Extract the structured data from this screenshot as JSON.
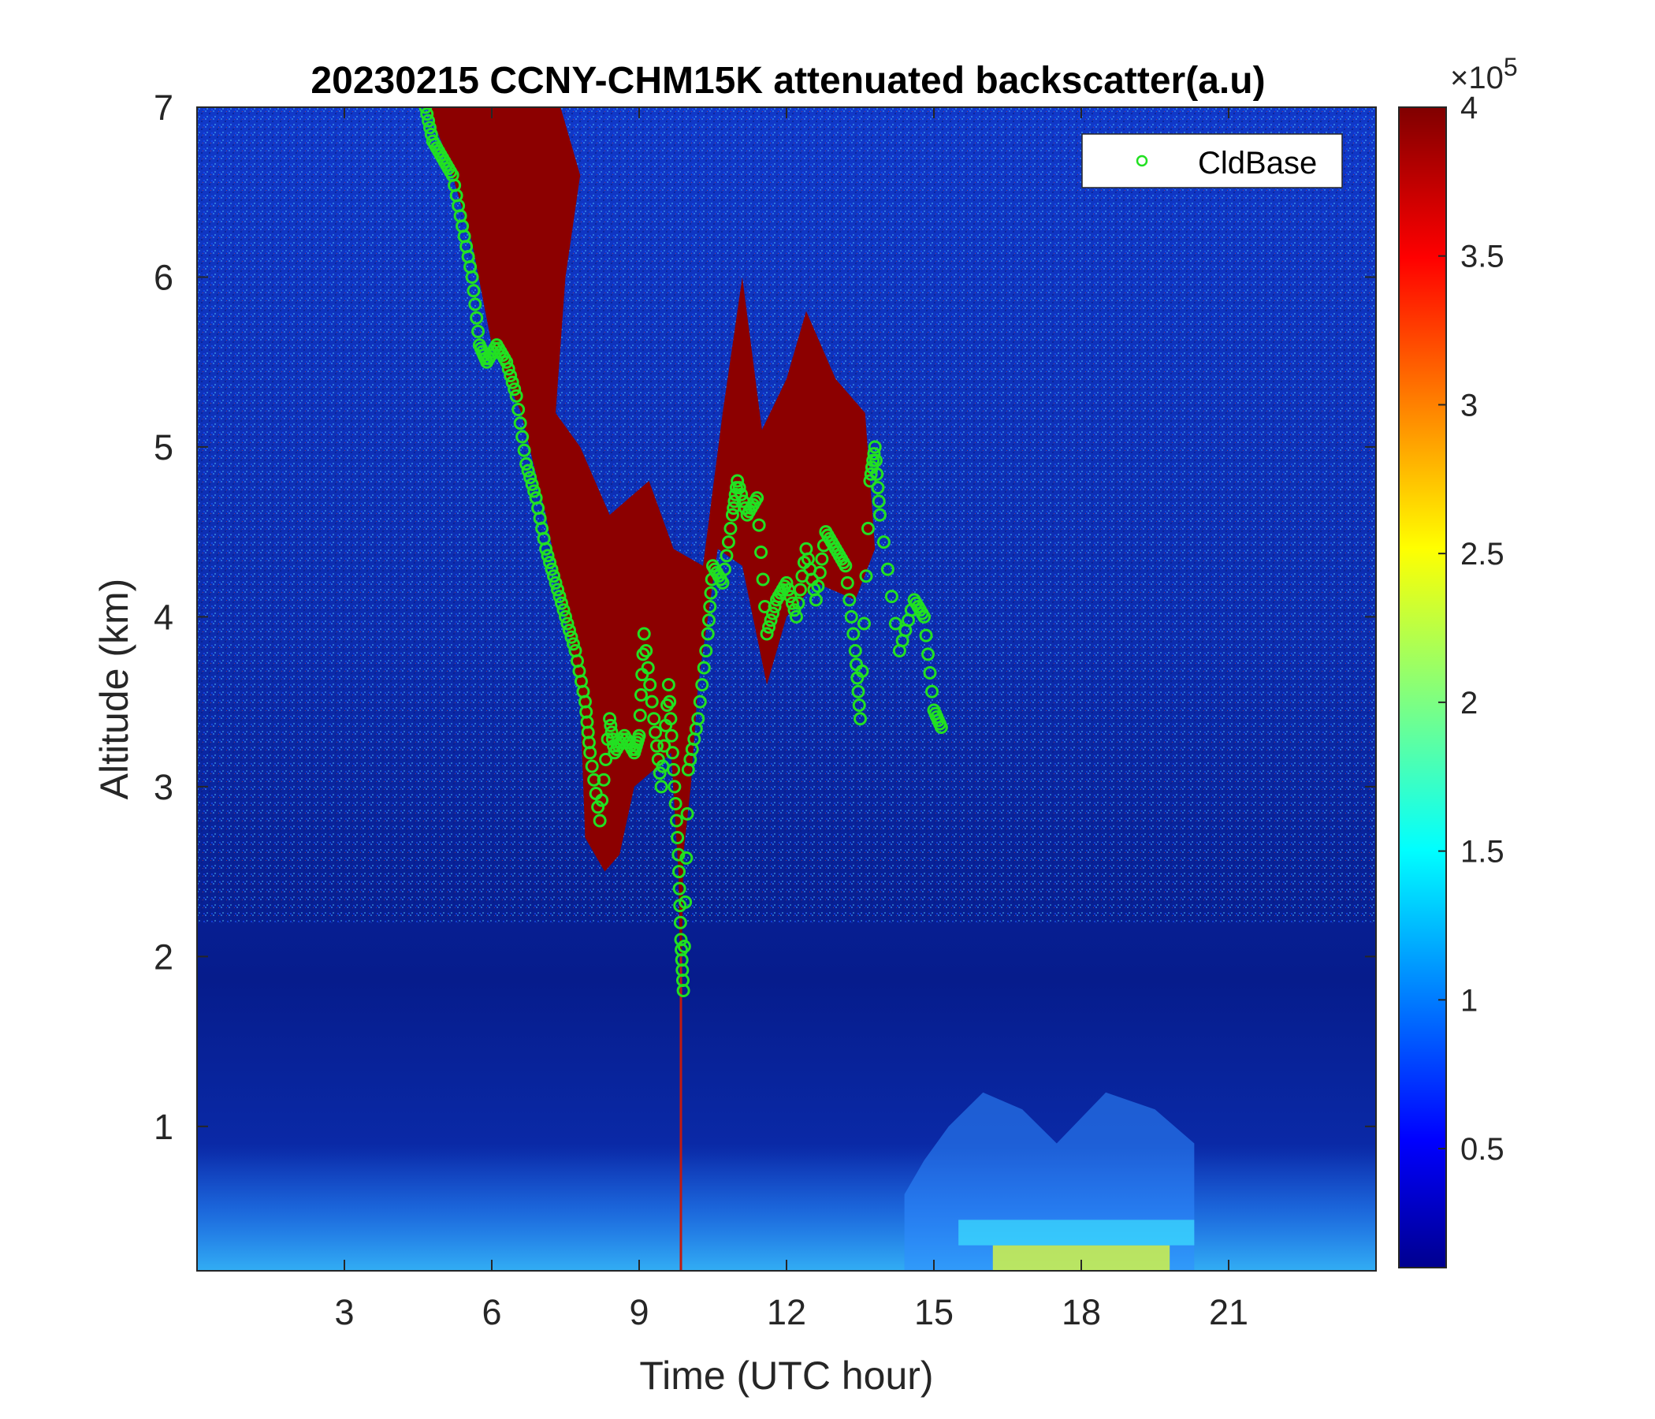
{
  "chart_data": {
    "type": "heatmap",
    "title": "20230215 CCNY-CHM15K attenuated backscatter(a.u)",
    "xlabel": "Time (UTC hour)",
    "ylabel": "Altitude (km)",
    "xlim": [
      0,
      24
    ],
    "ylim": [
      0.15,
      7
    ],
    "xticks": [
      3,
      6,
      9,
      12,
      15,
      18,
      21
    ],
    "yticks": [
      1,
      2,
      3,
      4,
      5,
      6,
      7
    ],
    "colorbar": {
      "colormap": "jet",
      "range": [
        0.1,
        4
      ],
      "ticks": [
        0.5,
        1,
        1.5,
        2,
        2.5,
        3,
        3.5,
        4
      ],
      "exponent_label": "×10",
      "exponent": "5"
    },
    "grid": false,
    "legend": {
      "position": "top-right",
      "entries": [
        "CldBase"
      ]
    },
    "series": [
      {
        "name": "CldBase",
        "marker": "open-circle",
        "color": "#22e022",
        "points": [
          [
            4.65,
            7.0
          ],
          [
            4.8,
            6.8
          ],
          [
            5.0,
            6.7
          ],
          [
            5.2,
            6.6
          ],
          [
            5.4,
            6.3
          ],
          [
            5.6,
            6.0
          ],
          [
            5.75,
            5.6
          ],
          [
            5.9,
            5.5
          ],
          [
            6.1,
            5.6
          ],
          [
            6.3,
            5.5
          ],
          [
            6.5,
            5.3
          ],
          [
            6.7,
            4.9
          ],
          [
            6.9,
            4.7
          ],
          [
            7.1,
            4.4
          ],
          [
            7.3,
            4.2
          ],
          [
            7.5,
            4.0
          ],
          [
            7.7,
            3.8
          ],
          [
            7.9,
            3.5
          ],
          [
            8.0,
            3.2
          ],
          [
            8.2,
            2.8
          ],
          [
            8.4,
            3.4
          ],
          [
            8.5,
            3.2
          ],
          [
            8.7,
            3.3
          ],
          [
            8.9,
            3.2
          ],
          [
            9.0,
            3.3
          ],
          [
            9.1,
            3.9
          ],
          [
            9.3,
            3.4
          ],
          [
            9.45,
            3.0
          ],
          [
            9.6,
            3.6
          ],
          [
            9.7,
            3.1
          ],
          [
            9.8,
            2.6
          ],
          [
            9.85,
            2.1
          ],
          [
            9.9,
            1.8
          ],
          [
            10.0,
            3.1
          ],
          [
            10.2,
            3.4
          ],
          [
            10.4,
            3.9
          ],
          [
            10.5,
            4.3
          ],
          [
            10.7,
            4.2
          ],
          [
            10.9,
            4.6
          ],
          [
            11.0,
            4.8
          ],
          [
            11.2,
            4.6
          ],
          [
            11.4,
            4.7
          ],
          [
            11.6,
            3.9
          ],
          [
            11.8,
            4.1
          ],
          [
            12.0,
            4.2
          ],
          [
            12.2,
            4.0
          ],
          [
            12.4,
            4.4
          ],
          [
            12.6,
            4.1
          ],
          [
            12.8,
            4.5
          ],
          [
            13.0,
            4.4
          ],
          [
            13.2,
            4.3
          ],
          [
            13.4,
            3.8
          ],
          [
            13.5,
            3.4
          ],
          [
            13.7,
            4.8
          ],
          [
            13.8,
            5.0
          ],
          [
            13.9,
            4.6
          ],
          [
            14.3,
            3.8
          ],
          [
            14.6,
            4.1
          ],
          [
            14.8,
            4.0
          ],
          [
            15.0,
            3.45
          ],
          [
            15.15,
            3.35
          ]
        ]
      }
    ]
  }
}
